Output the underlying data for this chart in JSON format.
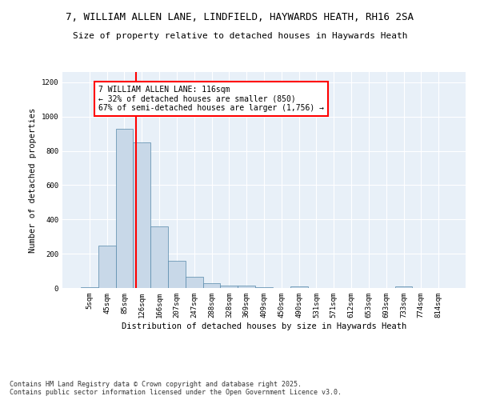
{
  "title_line1": "7, WILLIAM ALLEN LANE, LINDFIELD, HAYWARDS HEATH, RH16 2SA",
  "title_line2": "Size of property relative to detached houses in Haywards Heath",
  "xlabel": "Distribution of detached houses by size in Haywards Heath",
  "ylabel": "Number of detached properties",
  "categories": [
    "5sqm",
    "45sqm",
    "85sqm",
    "126sqm",
    "166sqm",
    "207sqm",
    "247sqm",
    "288sqm",
    "328sqm",
    "369sqm",
    "409sqm",
    "450sqm",
    "490sqm",
    "531sqm",
    "571sqm",
    "612sqm",
    "653sqm",
    "693sqm",
    "733sqm",
    "774sqm",
    "814sqm"
  ],
  "values": [
    5,
    248,
    930,
    848,
    358,
    158,
    65,
    30,
    12,
    12,
    5,
    0,
    8,
    0,
    0,
    0,
    0,
    0,
    8,
    0,
    0
  ],
  "bar_color": "#c8d8e8",
  "bar_edge_color": "#5588aa",
  "bar_width": 1.0,
  "vline_x": 2.65,
  "vline_color": "red",
  "annotation_text": "7 WILLIAM ALLEN LANE: 116sqm\n← 32% of detached houses are smaller (850)\n67% of semi-detached houses are larger (1,756) →",
  "annotation_box_color": "white",
  "annotation_box_edge": "red",
  "ylim": [
    0,
    1260
  ],
  "yticks": [
    0,
    200,
    400,
    600,
    800,
    1000,
    1200
  ],
  "background_color": "#e8f0f8",
  "grid_color": "white",
  "footer": "Contains HM Land Registry data © Crown copyright and database right 2025.\nContains public sector information licensed under the Open Government Licence v3.0.",
  "title_fontsize": 9,
  "subtitle_fontsize": 8,
  "axis_label_fontsize": 7.5,
  "tick_fontsize": 6.5,
  "annotation_fontsize": 7,
  "footer_fontsize": 6
}
